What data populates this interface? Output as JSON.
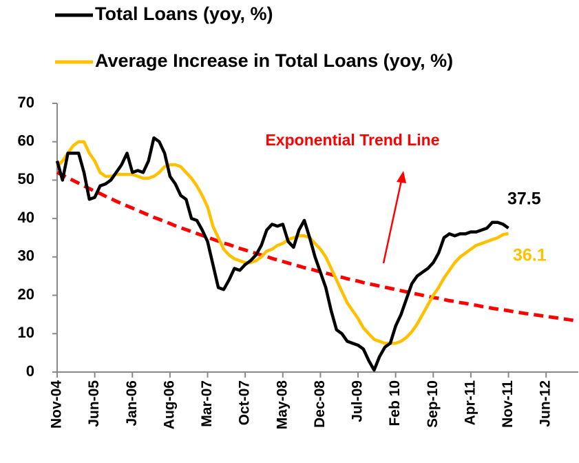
{
  "chart_data": {
    "type": "line",
    "categories": [
      "Nov-04",
      null,
      null,
      null,
      null,
      null,
      null,
      "Jun-05",
      null,
      null,
      null,
      null,
      null,
      null,
      "Jan-06",
      null,
      null,
      null,
      null,
      null,
      null,
      "Aug-06",
      null,
      null,
      null,
      null,
      null,
      null,
      "Mar-07",
      null,
      null,
      null,
      null,
      null,
      null,
      "Oct-07",
      null,
      null,
      null,
      null,
      null,
      null,
      "May-08",
      null,
      null,
      null,
      null,
      null,
      null,
      "Dec-08",
      null,
      null,
      null,
      null,
      null,
      null,
      "Jul-09",
      null,
      null,
      null,
      null,
      null,
      null,
      "Feb 10",
      null,
      null,
      null,
      null,
      null,
      null,
      "Sep-10",
      null,
      null,
      null,
      null,
      null,
      null,
      "Apr-11",
      null,
      null,
      null,
      null,
      null,
      null,
      "Nov-11",
      null,
      null,
      null,
      null,
      null,
      null,
      "Jun-12",
      null,
      null,
      null,
      null,
      null,
      null
    ],
    "series": [
      {
        "name": "Total Loans (yoy, %)",
        "color": "#000000",
        "values": [
          55,
          50,
          57,
          57,
          57,
          52,
          45,
          45.5,
          48.5,
          49,
          50,
          52,
          54,
          57,
          52,
          52.5,
          52,
          55,
          61,
          60,
          57,
          51,
          49,
          46,
          45,
          40,
          39.5,
          37,
          34,
          28,
          22,
          21.5,
          24,
          27,
          26.5,
          28,
          29,
          30.5,
          33,
          37,
          38.5,
          38,
          38.5,
          34,
          32.5,
          37,
          39.5,
          35,
          30,
          26,
          22,
          16,
          11,
          10,
          8,
          7.5,
          7,
          6,
          3,
          0.5,
          4,
          6.5,
          7.5,
          12,
          15,
          19,
          23,
          25,
          26,
          27,
          28.5,
          31,
          35,
          36,
          35.5,
          36,
          36,
          36.5,
          36.5,
          37,
          37.5,
          39,
          39,
          38.5,
          37.5,
          null,
          null,
          null,
          null,
          null,
          null,
          null,
          null,
          null,
          null,
          null,
          null,
          null
        ]
      },
      {
        "name": "Average Increase in Total Loans (yoy, %)",
        "color": "#ffc000",
        "values": [
          53.5,
          55,
          57,
          59,
          60,
          60,
          57,
          55,
          52,
          51,
          51,
          51.5,
          51.5,
          51.5,
          51.5,
          51,
          50.5,
          50.5,
          51,
          52,
          53.5,
          54,
          54,
          53.5,
          52,
          50.5,
          48.5,
          46,
          43,
          38,
          35,
          32,
          30.5,
          29.5,
          29,
          28.5,
          28.5,
          29,
          30,
          31.5,
          32,
          33,
          33.5,
          34.5,
          35,
          35.5,
          35.5,
          35,
          33.5,
          32,
          30,
          27,
          24,
          21,
          18,
          16,
          14,
          11.5,
          10,
          8.5,
          8,
          7.5,
          7.5,
          7.5,
          8,
          9,
          10.5,
          12.5,
          15,
          17.5,
          20,
          22,
          24.5,
          26.5,
          28.5,
          30,
          31,
          32,
          33,
          33.5,
          34,
          34.5,
          35,
          35.8,
          36.1,
          null,
          null,
          null,
          null,
          null,
          null,
          null,
          null,
          null,
          null,
          null,
          null,
          null
        ]
      }
    ],
    "trend": {
      "label": "Exponential Trend Line",
      "color": "#ff0000",
      "values": [
        52.0,
        51.3,
        50.6,
        49.9,
        49.2,
        48.5,
        47.8,
        47.1,
        46.5,
        45.8,
        45.2,
        44.5,
        43.9,
        43.3,
        42.7,
        42.1,
        41.5,
        40.9,
        40.3,
        39.8,
        39.2,
        38.7,
        38.1,
        37.6,
        37.1,
        36.6,
        36.1,
        35.6,
        35.1,
        34.6,
        34.1,
        33.6,
        33.2,
        32.7,
        32.2,
        31.8,
        31.3,
        30.9,
        30.5,
        30.1,
        29.6,
        29.2,
        28.8,
        28.4,
        28.0,
        27.6,
        27.2,
        26.9,
        26.5,
        26.1,
        25.8,
        25.4,
        25.0,
        24.7,
        24.3,
        24.0,
        23.7,
        23.3,
        23.0,
        22.7,
        22.4,
        22.1,
        21.8,
        21.5,
        21.2,
        20.9,
        20.6,
        20.3,
        20.0,
        19.7,
        19.4,
        19.2,
        18.9,
        18.6,
        18.4,
        18.1,
        17.9,
        17.6,
        17.4,
        17.1,
        16.9,
        16.6,
        16.4,
        16.2,
        16.0,
        15.7,
        15.5,
        15.3,
        15.1,
        14.9,
        14.7,
        14.5,
        14.3,
        14.1,
        13.9,
        13.7,
        13.5,
        13.3
      ]
    },
    "ylim": [
      0,
      70
    ],
    "yticks": [
      0,
      10,
      20,
      30,
      40,
      50,
      60,
      70
    ],
    "grid": false,
    "legend": "top"
  }
}
